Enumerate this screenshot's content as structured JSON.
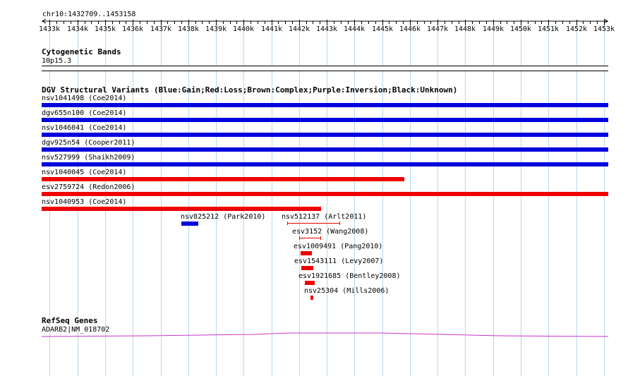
{
  "ruler": {
    "position_label": "chr10:1432709..1453158",
    "ticks": [
      "1433k",
      "1434k",
      "1435k",
      "1436k",
      "1437k",
      "1438k",
      "1439k",
      "1440k",
      "1441k",
      "1442k",
      "1443k",
      "1444k",
      "1445k",
      "1446k",
      "1447k",
      "1448k",
      "1449k",
      "1450k",
      "1451k",
      "1452k",
      "1453k"
    ]
  },
  "cytobands": {
    "title": "Cytogenetic Bands",
    "band": "10p15.3"
  },
  "dgv": {
    "title": "DGV Structural Variants (Blue:Gain;Red:Loss;Brown:Complex;Purple:Inversion;Black:Unknown)",
    "colors": {
      "gain": "#0000dd",
      "loss": "#ee0000"
    },
    "variants": [
      {
        "label": "nsv1041498 (Coe2014)",
        "type": "gain",
        "start": 1432709,
        "end": 1453158
      },
      {
        "label": "dgv655n100 (Coe2014)",
        "type": "gain",
        "start": 1432709,
        "end": 1453158
      },
      {
        "label": "nsv1046041 (Coe2014)",
        "type": "gain",
        "start": 1432709,
        "end": 1453158
      },
      {
        "label": "dgv925n54 (Cooper2011)",
        "type": "gain",
        "start": 1432709,
        "end": 1453158
      },
      {
        "label": "nsv527999 (Shaikh2009)",
        "type": "gain",
        "start": 1432709,
        "end": 1453158
      },
      {
        "label": "nsv1040045 (Coe2014)",
        "type": "loss",
        "start": 1432709,
        "end": 1445790
      },
      {
        "label": "esv2759724 (Redon2006)",
        "type": "loss",
        "start": 1432709,
        "end": 1453158
      },
      {
        "label": "nsv1040953 (Coe2014)",
        "type": "loss",
        "start": 1432709,
        "end": 1442800
      },
      {
        "label": "nsv825212 (Park2010)",
        "type": "gain",
        "start": 1437740,
        "end": 1438360
      },
      {
        "label": "nsv512137 (Arlt2011)",
        "type": "loss",
        "start": 1441580,
        "end": 1443450,
        "style": "line"
      },
      {
        "label": "esv3152 (Wang2008)",
        "type": "loss",
        "start": 1442000,
        "end": 1442760,
        "style": "line"
      },
      {
        "label": "esv1009491 (Pang2010)",
        "type": "loss",
        "start": 1442060,
        "end": 1442470
      },
      {
        "label": "esv1543111 (Levy2007)",
        "type": "loss",
        "start": 1442070,
        "end": 1442510
      },
      {
        "label": "esv1921685 (Bentley2008)",
        "type": "loss",
        "start": 1442200,
        "end": 1442560
      },
      {
        "label": "nsv25304 (Mills2006)",
        "type": "loss",
        "start": 1442410,
        "end": 1442510
      }
    ]
  },
  "refseq": {
    "title": "RefSeq Genes",
    "gene": "ADARB2|NM_018702",
    "color": "#cc33cc"
  }
}
